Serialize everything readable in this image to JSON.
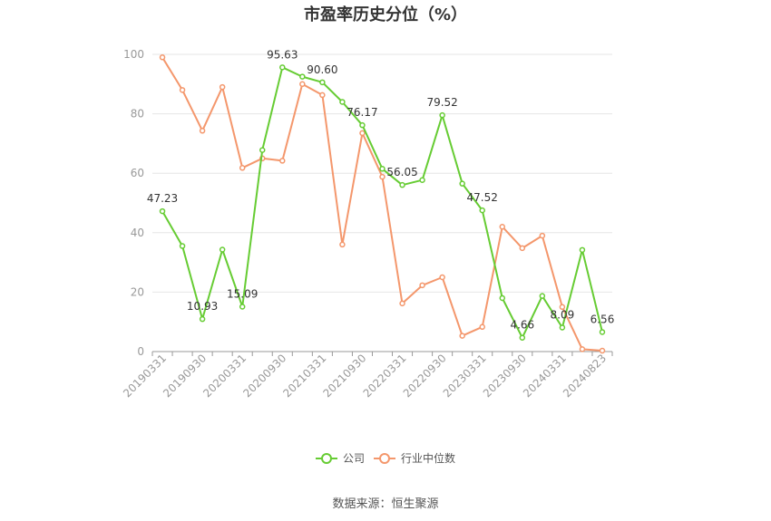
{
  "chart_data": {
    "type": "line",
    "title": "市盈率历史分位（%）",
    "source": "数据来源：恒生聚源",
    "ylim": [
      0,
      100
    ],
    "yticks": [
      0,
      20,
      40,
      60,
      80,
      100
    ],
    "grid": true,
    "legend_position": "bottom-center",
    "x_tick_labels": [
      "20190331",
      "20190930",
      "20200331",
      "20200930",
      "20210331",
      "20210930",
      "20220331",
      "20220930",
      "20230331",
      "20230930",
      "20240331",
      "20240823"
    ],
    "x_tick_positions": [
      0,
      2,
      4,
      6,
      8,
      10,
      12,
      14,
      16,
      18,
      20,
      22
    ],
    "series": [
      {
        "name": "公司",
        "color": "#66cc33",
        "values": [
          47.23,
          35.5,
          10.93,
          34.3,
          15.09,
          67.8,
          95.63,
          92.5,
          90.6,
          84.0,
          76.17,
          61.5,
          56.05,
          57.7,
          79.52,
          56.5,
          47.52,
          18.0,
          4.66,
          18.7,
          8.09,
          34.2,
          6.56
        ],
        "labels": {
          "0": "47.23",
          "2": "10.93",
          "4": "15.09",
          "6": "95.63",
          "8": "90.60",
          "10": "76.17",
          "12": "56.05",
          "14": "79.52",
          "16": "47.52",
          "18": "4.66",
          "20": "8.09",
          "22": "6.56"
        }
      },
      {
        "name": "行业中位数",
        "color": "#f4976c",
        "values": [
          99.0,
          88.0,
          74.3,
          89.0,
          61.8,
          65.0,
          64.2,
          90.0,
          86.3,
          36.0,
          73.5,
          58.8,
          16.2,
          22.3,
          25.0,
          5.3,
          8.3,
          42.0,
          34.8,
          39.0,
          15.0,
          0.8,
          0.3
        ]
      }
    ]
  }
}
